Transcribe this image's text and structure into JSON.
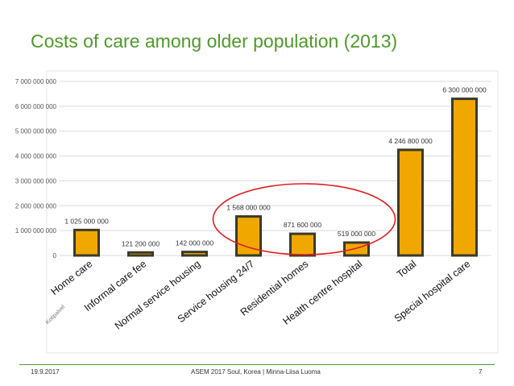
{
  "slide": {
    "title": "Costs of care among older population (2013)",
    "footer_date": "19.9.2017",
    "footer_center": "ASEM 2017 Soul, Korea | Minna-Liisa Luoma",
    "page_number": "7"
  },
  "chart_data": {
    "type": "bar",
    "title": "",
    "xlabel": "",
    "ylabel": "",
    "categories": [
      "Home care",
      "Informal care fee",
      "Normal service housing",
      "Service housing 24/7",
      "Residential homes",
      "Health centre hospital",
      "Total",
      "Special hospital care"
    ],
    "values": [
      1025000000,
      121200000,
      142000000,
      1568000000,
      871600000,
      519000000,
      4246800000,
      6300000000
    ],
    "data_labels": [
      "1 025 000 000",
      "121 200 000",
      "142 000 000",
      "1 568 000 000",
      "871 600 000",
      "519 000 000",
      "4 246 800 000",
      "6 300 000 000"
    ],
    "ylim": [
      0,
      7000000000
    ],
    "yticks": [
      0,
      1000000000,
      2000000000,
      3000000000,
      4000000000,
      5000000000,
      6000000000,
      7000000000
    ],
    "ytick_labels": [
      "0",
      "1 000 000 000",
      "2 000 000 000",
      "3 000 000 000",
      "4 000 000 000",
      "5 000 000 000",
      "6 000 000 000",
      "7 000 000 000"
    ],
    "grid": true,
    "legend": "none",
    "bar_color": "#f0a800",
    "bar_edge_color": "#3a3a2a",
    "grid_color": "#d9d9d9",
    "highlight_color": "#e02020",
    "highlight_covers": [
      "Service housing 24/7",
      "Residential homes",
      "Health centre hospital"
    ],
    "side_note": "Kotipalvel"
  }
}
